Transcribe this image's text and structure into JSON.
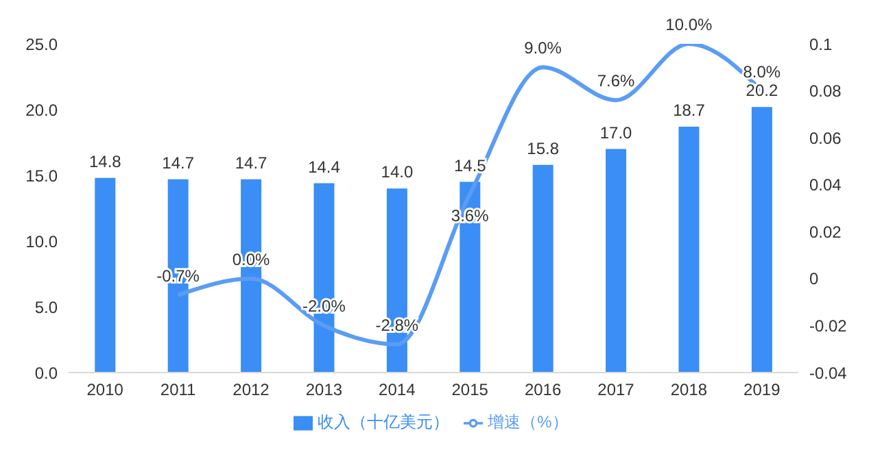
{
  "chart_data": {
    "type": "bar",
    "categories": [
      "2010",
      "2011",
      "2012",
      "2013",
      "2014",
      "2015",
      "2016",
      "2017",
      "2018",
      "2019"
    ],
    "series": [
      {
        "name": "收入（十亿美元）",
        "color": "#3a8ef6",
        "values": [
          14.8,
          14.7,
          14.7,
          14.4,
          14.0,
          14.5,
          15.8,
          17.0,
          18.7,
          20.2
        ],
        "value_labels": [
          "14.8",
          "14.7",
          "14.7",
          "14.4",
          "14.0",
          "14.5",
          "15.8",
          "17.0",
          "18.7",
          "20.2"
        ]
      },
      {
        "name": "增速（%）",
        "type": "line",
        "axis": "y2",
        "color": "#5b9cf5",
        "values": [
          null,
          -0.007,
          0.0,
          -0.02,
          -0.028,
          0.036,
          0.09,
          0.076,
          0.1,
          0.08
        ],
        "value_labels": [
          null,
          "-0.7%",
          "0.0%",
          "-2.0%",
          "-2.8%",
          "3.6%",
          "9.0%",
          "7.6%",
          "10.0%",
          "8.0%"
        ]
      }
    ],
    "ylim": [
      0,
      25
    ],
    "yticks": [
      {
        "value": 0,
        "label": "0.0"
      },
      {
        "value": 5,
        "label": "5.0"
      },
      {
        "value": 10,
        "label": "10.0"
      },
      {
        "value": 15,
        "label": "15.0"
      },
      {
        "value": 20,
        "label": "20.0"
      },
      {
        "value": 25,
        "label": "25.0"
      }
    ],
    "y2lim": [
      -0.04,
      0.1
    ],
    "y2ticks": [
      -0.04,
      -0.02,
      0,
      0.02,
      0.04,
      0.06,
      0.08,
      0.1
    ],
    "grid": false,
    "legend": "bottom",
    "marker": "none",
    "line_style": "solid"
  }
}
